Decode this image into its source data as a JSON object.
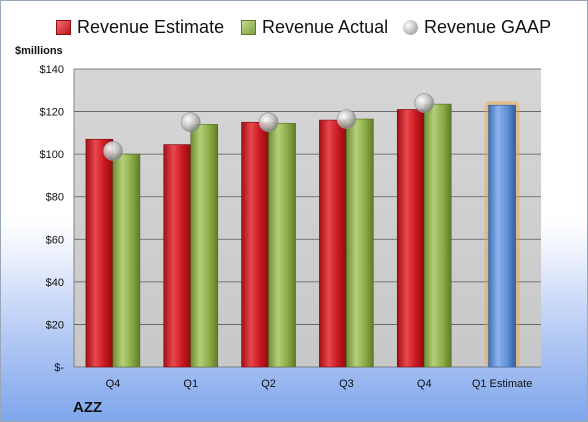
{
  "legend": {
    "estimate": "Revenue Estimate",
    "actual": "Revenue Actual",
    "gaap": "Revenue GAAP"
  },
  "unit_label": "$millions",
  "ticker": "AZZ",
  "colors": {
    "estimate": "#c8161e",
    "actual": "#8bab45",
    "gaap": "#b0b0b0",
    "forecast": "#5b8fd6",
    "forecast_glow": "#f5a03c",
    "plot_background": "#cfcfcf"
  },
  "chart_data": {
    "type": "bar",
    "categories": [
      "Q4",
      "Q1",
      "Q2",
      "Q3",
      "Q4",
      "Q1 Estimate"
    ],
    "series": [
      {
        "name": "Revenue Estimate",
        "values": [
          107,
          104.5,
          115,
          116,
          121,
          null
        ]
      },
      {
        "name": "Revenue Actual",
        "values": [
          100,
          114,
          114.5,
          116.5,
          123.5,
          123
        ]
      },
      {
        "name": "Revenue GAAP",
        "values": [
          101.5,
          115,
          115,
          116.5,
          124,
          null
        ]
      }
    ],
    "yticks": [
      "$-",
      "$20",
      "$40",
      "$60",
      "$80",
      "$100",
      "$120",
      "$140"
    ],
    "ylim": [
      0,
      140
    ],
    "ylabel": "$millions",
    "grid": true,
    "legend_position": "top"
  }
}
